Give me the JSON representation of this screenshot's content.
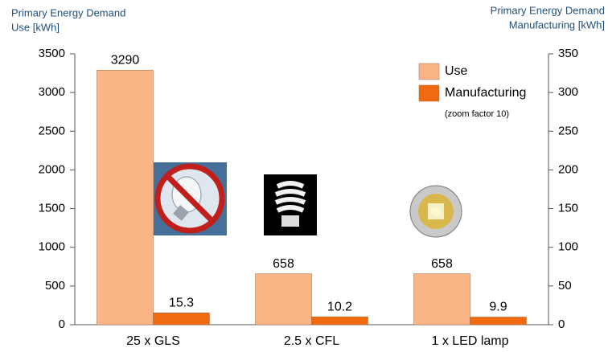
{
  "chart_data": {
    "type": "bar",
    "ylabel": [
      "Primary Energy Demand",
      "Use [kWh]"
    ],
    "y2label": [
      "Primary Energy Demand",
      "Manufacturing [kWh]"
    ],
    "categories": [
      "25 x GLS",
      "2.5 x CFL",
      "1 x LED lamp"
    ],
    "series": [
      {
        "name": "Use",
        "color": "#fbb486",
        "values": [
          3290,
          658,
          658
        ]
      },
      {
        "name": "Manufacturing",
        "color": "#f26a10",
        "values": [
          15.3,
          10.2,
          9.9
        ],
        "axis": "y2"
      }
    ],
    "legend_note": "(zoom factor 10)",
    "legend": "upper right",
    "ylim": [
      0,
      3500
    ],
    "yticks": [
      0,
      500,
      1000,
      1500,
      2000,
      2500,
      3000,
      3500
    ],
    "y2lim": [
      0,
      350
    ],
    "y2ticks": [
      0,
      50,
      100,
      150,
      200,
      250,
      300,
      350
    ]
  }
}
